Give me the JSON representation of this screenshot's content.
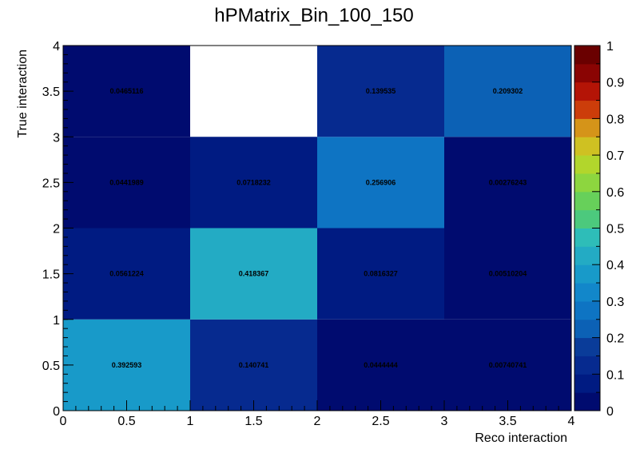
{
  "chart_data": {
    "type": "heatmap",
    "title": "hPMatrix_Bin_100_150",
    "xlabel": "Reco interaction",
    "ylabel": "True interaction",
    "xlim": [
      0,
      4
    ],
    "ylim": [
      0,
      4
    ],
    "zlim": [
      0,
      1
    ],
    "x_edges": [
      0,
      1,
      2,
      3,
      4
    ],
    "y_edges": [
      0,
      1,
      2,
      3,
      4
    ],
    "x_ticks": [
      "0",
      "0.5",
      "1",
      "1.5",
      "2",
      "2.5",
      "3",
      "3.5",
      "4"
    ],
    "y_ticks": [
      "0",
      "0.5",
      "1",
      "1.5",
      "2",
      "2.5",
      "3",
      "3.5",
      "4"
    ],
    "z_ticks": [
      "0",
      "0.1",
      "0.2",
      "0.3",
      "0.4",
      "0.5",
      "0.6",
      "0.7",
      "0.8",
      "0.9",
      "1"
    ],
    "colorscale_levels": 20,
    "colorscale": [
      "#000b6f",
      "#001b82",
      "#062a8f",
      "#0a3c99",
      "#0a4fa6",
      "#0c61b5",
      "#0e74c3",
      "#1287ca",
      "#189ac9",
      "#23abc4",
      "#2ebdb8",
      "#3cc49a",
      "#4cc97d",
      "#67d05a",
      "#8dd63f",
      "#b2d62c",
      "#cfc122",
      "#d59419",
      "#d3690f",
      "#cc3d0a",
      "#b41406",
      "#8a0403",
      "#6a0000"
    ],
    "grid": false,
    "legend": "colorbar-right",
    "cells": [
      {
        "x": 0.5,
        "y": 0.5,
        "value": 0.392593,
        "label": "0.392593"
      },
      {
        "x": 1.5,
        "y": 0.5,
        "value": 0.140741,
        "label": "0.140741"
      },
      {
        "x": 2.5,
        "y": 0.5,
        "value": 0.0444444,
        "label": "0.0444444"
      },
      {
        "x": 3.5,
        "y": 0.5,
        "value": 0.00740741,
        "label": "0.00740741"
      },
      {
        "x": 0.5,
        "y": 1.5,
        "value": 0.0561224,
        "label": "0.0561224"
      },
      {
        "x": 1.5,
        "y": 1.5,
        "value": 0.418367,
        "label": "0.418367"
      },
      {
        "x": 2.5,
        "y": 1.5,
        "value": 0.0816327,
        "label": "0.0816327"
      },
      {
        "x": 3.5,
        "y": 1.5,
        "value": 0.00510204,
        "label": "0.00510204"
      },
      {
        "x": 0.5,
        "y": 2.5,
        "value": 0.0441989,
        "label": "0.0441989"
      },
      {
        "x": 1.5,
        "y": 2.5,
        "value": 0.0718232,
        "label": "0.0718232"
      },
      {
        "x": 2.5,
        "y": 2.5,
        "value": 0.256906,
        "label": "0.256906"
      },
      {
        "x": 3.5,
        "y": 2.5,
        "value": 0.00276243,
        "label": "0.00276243"
      },
      {
        "x": 0.5,
        "y": 3.5,
        "value": 0.0465116,
        "label": "0.0465116"
      },
      {
        "x": 2.5,
        "y": 3.5,
        "value": 0.139535,
        "label": "0.139535"
      },
      {
        "x": 3.5,
        "y": 3.5,
        "value": 0.209302,
        "label": "0.209302"
      }
    ]
  }
}
